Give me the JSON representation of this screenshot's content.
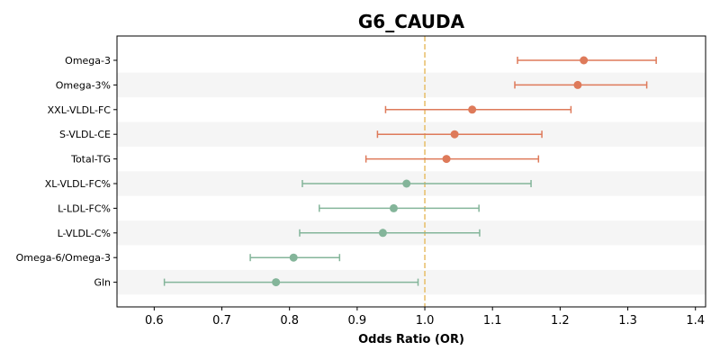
{
  "chart_data": {
    "type": "forest",
    "title": "G6_CAUDA",
    "xlabel": "Odds Ratio (OR)",
    "xlim": [
      0.545,
      1.415
    ],
    "xticks": [
      "0.6",
      "0.7",
      "0.8",
      "0.9",
      "1.0",
      "1.1",
      "1.2",
      "1.3",
      "1.4"
    ],
    "reference_line": 1.0,
    "reference_color": "#e8c170",
    "grid": false,
    "row_banding": true,
    "colors": {
      "above_one": "#de7a5a",
      "below_one": "#84b59a",
      "band": "#f5f5f5"
    },
    "rows": [
      {
        "label": "Omega-3",
        "or": 1.235,
        "lower": 1.137,
        "upper": 1.342
      },
      {
        "label": "Omega-3%",
        "or": 1.226,
        "lower": 1.133,
        "upper": 1.328
      },
      {
        "label": "XXL-VLDL-FC",
        "or": 1.07,
        "lower": 0.942,
        "upper": 1.216
      },
      {
        "label": "S-VLDL-CE",
        "or": 1.044,
        "lower": 0.93,
        "upper": 1.173
      },
      {
        "label": "Total-TG",
        "or": 1.032,
        "lower": 0.913,
        "upper": 1.168
      },
      {
        "label": "XL-VLDL-FC%",
        "or": 0.973,
        "lower": 0.819,
        "upper": 1.157
      },
      {
        "label": "L-LDL-FC%",
        "or": 0.954,
        "lower": 0.844,
        "upper": 1.08
      },
      {
        "label": "L-VLDL-C%",
        "or": 0.938,
        "lower": 0.815,
        "upper": 1.081
      },
      {
        "label": "Omega-6/Omega-3",
        "or": 0.806,
        "lower": 0.742,
        "upper": 0.874
      },
      {
        "label": "Gln",
        "or": 0.78,
        "lower": 0.615,
        "upper": 0.99
      }
    ]
  }
}
